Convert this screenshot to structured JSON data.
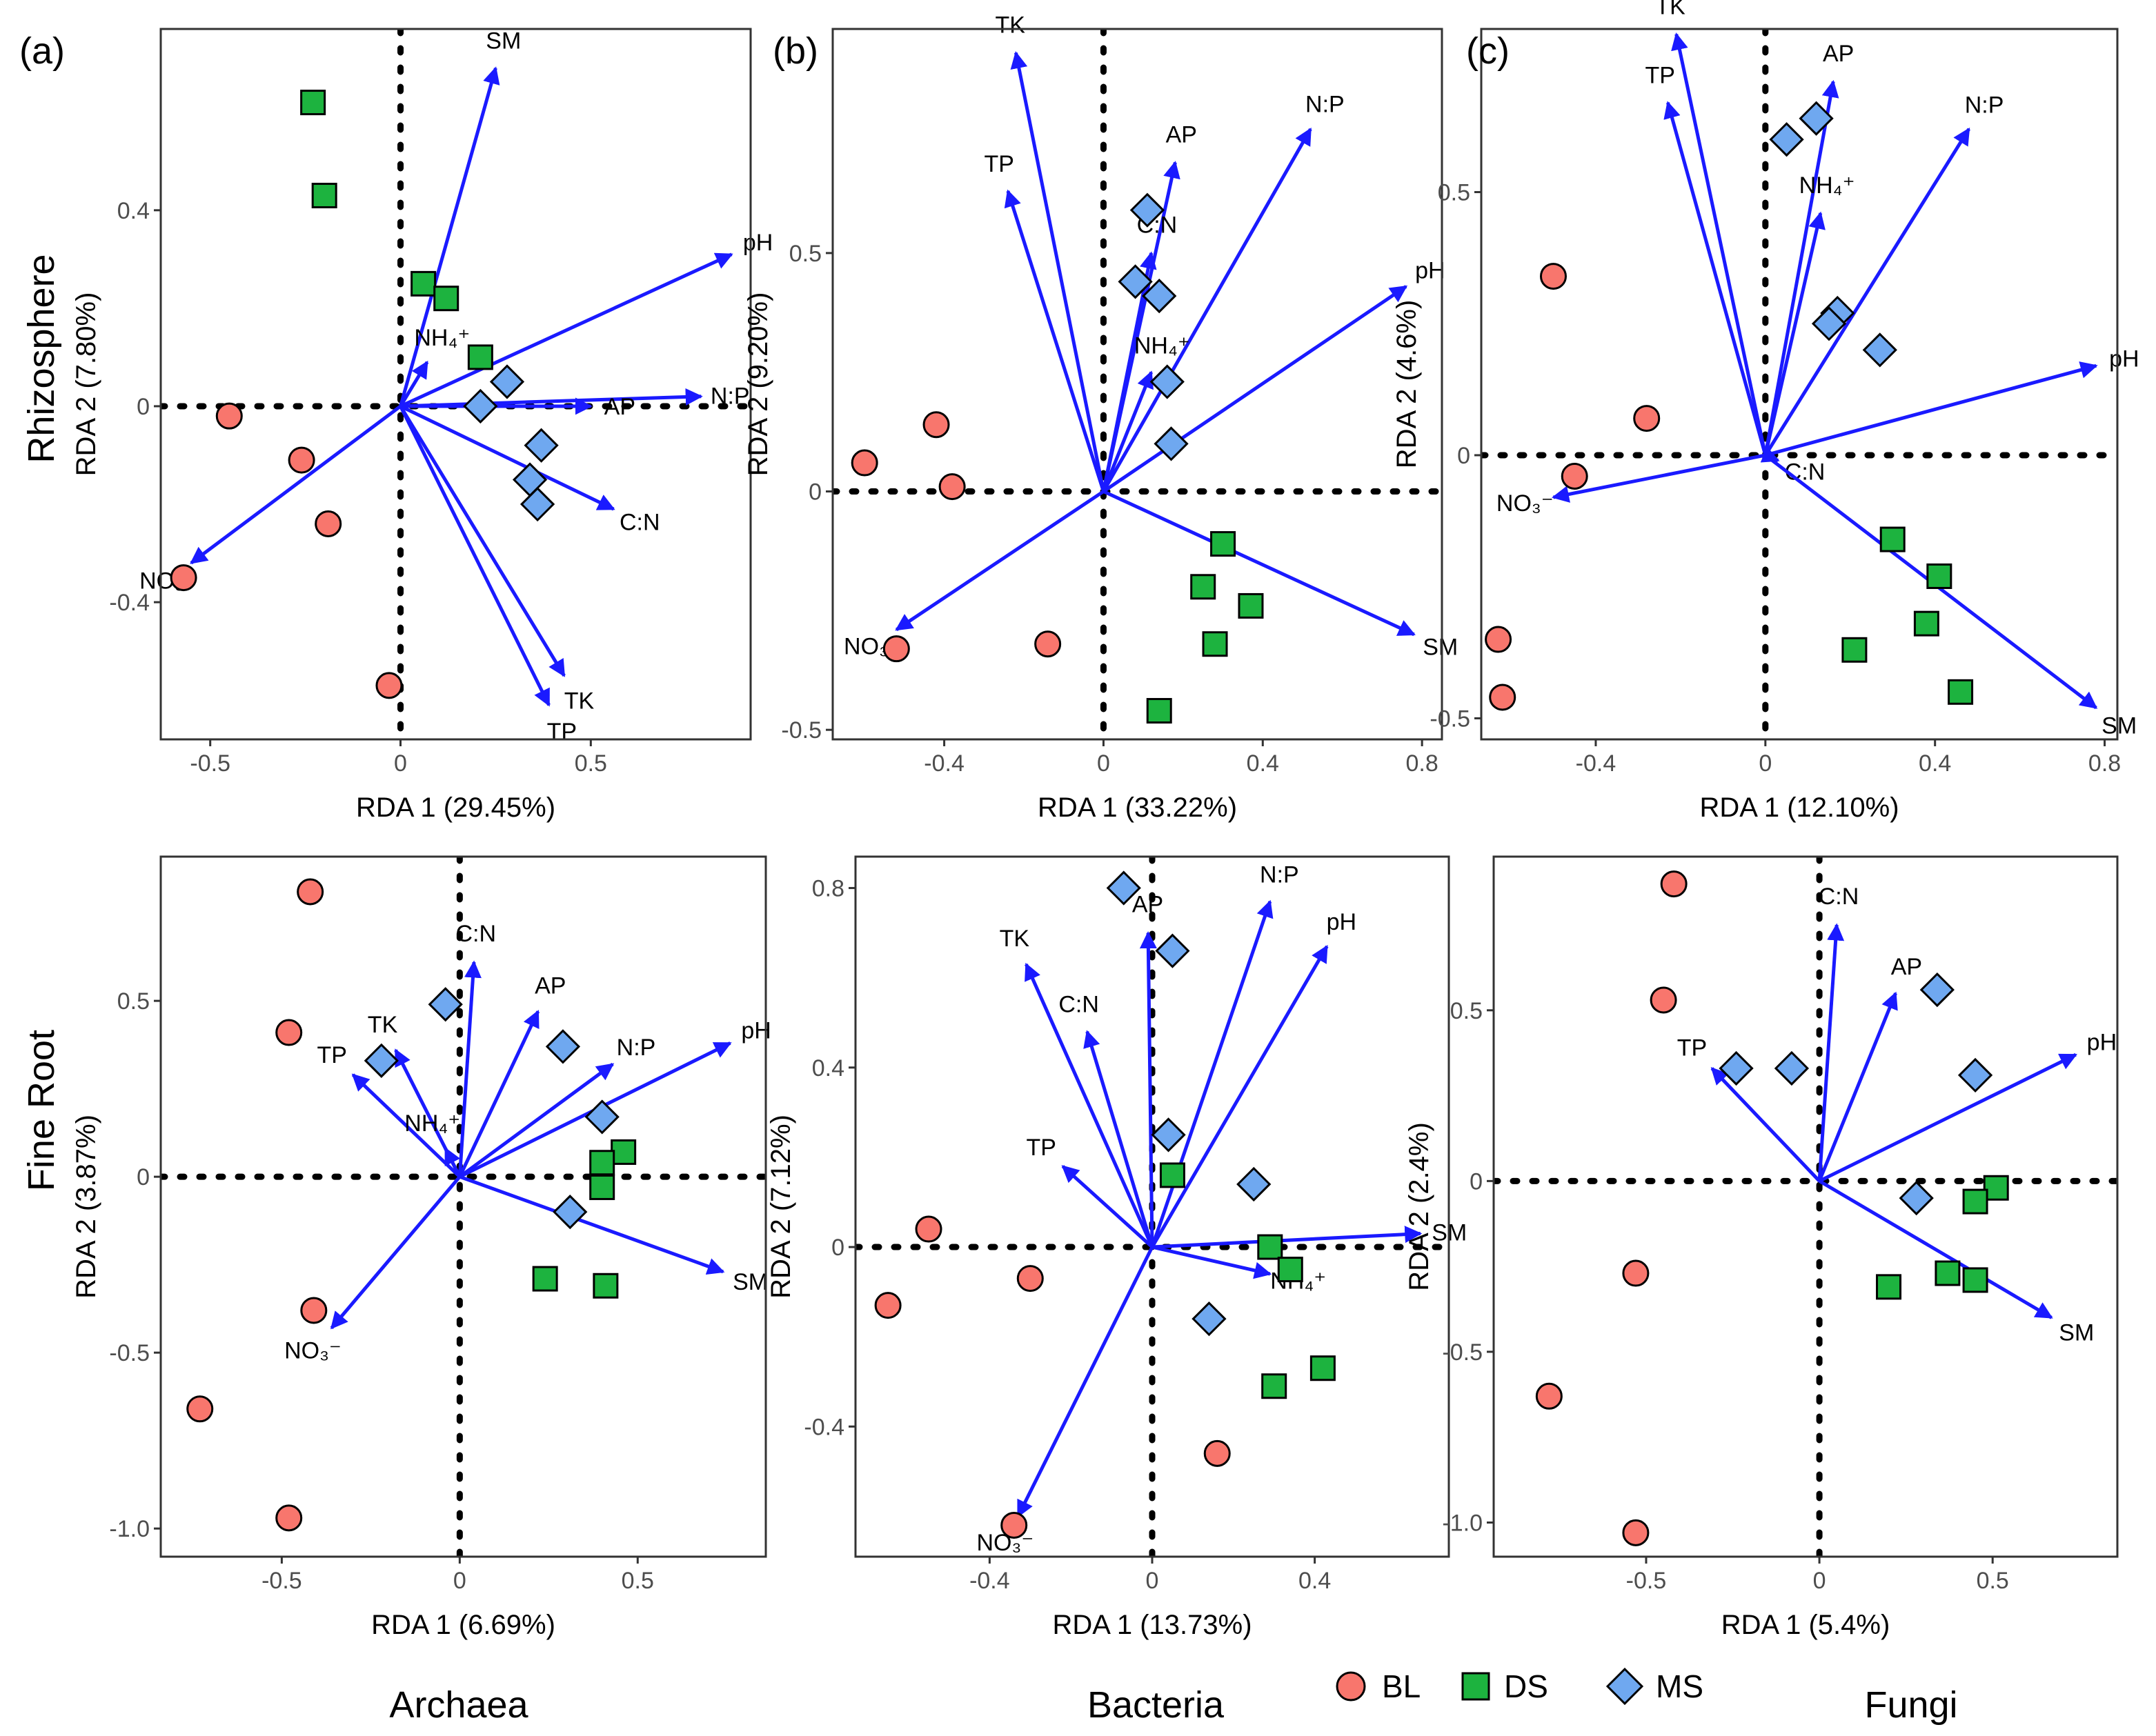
{
  "colors": {
    "BL": "#f8766d",
    "DS": "#1db33f",
    "MS": "#6fa8f0",
    "arrow": "#1a1aff"
  },
  "row_labels": [
    "Rhizosphere",
    "Fine Root"
  ],
  "column_labels": [
    "Archaea",
    "Bacteria",
    "Fungi"
  ],
  "legend": [
    {
      "group": "BL",
      "label": "BL",
      "shape": "circle"
    },
    {
      "group": "DS",
      "label": "DS",
      "shape": "square"
    },
    {
      "group": "MS",
      "label": "MS",
      "shape": "diamond"
    }
  ],
  "chart_data": [
    {
      "type": "scatter",
      "tag": "(a)",
      "row": "Rhizosphere",
      "column": "Archaea",
      "xlabel": "RDA 1 (29.45%)",
      "ylabel": "RDA 2 (7.80%)",
      "xlim": [
        -0.63,
        0.92
      ],
      "ylim": [
        -0.68,
        0.77
      ],
      "xticks": [
        -0.5,
        0,
        0.5
      ],
      "xtick_labels": [
        "-0.5",
        "0",
        "0.5"
      ],
      "yticks": [
        -0.4,
        0,
        0.4
      ],
      "ytick_labels": [
        "-0.4",
        "0",
        "0.4"
      ],
      "points": [
        {
          "g": "BL",
          "x": -0.45,
          "y": -0.02
        },
        {
          "g": "BL",
          "x": -0.26,
          "y": -0.11
        },
        {
          "g": "BL",
          "x": -0.19,
          "y": -0.24
        },
        {
          "g": "BL",
          "x": -0.57,
          "y": -0.35
        },
        {
          "g": "BL",
          "x": -0.03,
          "y": -0.57
        },
        {
          "g": "DS",
          "x": -0.23,
          "y": 0.62
        },
        {
          "g": "DS",
          "x": -0.2,
          "y": 0.43
        },
        {
          "g": "DS",
          "x": 0.06,
          "y": 0.25
        },
        {
          "g": "DS",
          "x": 0.12,
          "y": 0.22
        },
        {
          "g": "DS",
          "x": 0.21,
          "y": 0.1
        },
        {
          "g": "MS",
          "x": 0.28,
          "y": 0.05
        },
        {
          "g": "MS",
          "x": 0.21,
          "y": 0.0
        },
        {
          "g": "MS",
          "x": 0.37,
          "y": -0.08
        },
        {
          "g": "MS",
          "x": 0.34,
          "y": -0.15
        },
        {
          "g": "MS",
          "x": 0.36,
          "y": -0.2
        }
      ],
      "vectors": [
        {
          "label": "SM",
          "x": 0.25,
          "y": 0.69
        },
        {
          "label": "pH",
          "x": 0.87,
          "y": 0.31
        },
        {
          "label": "N:P",
          "x": 0.79,
          "y": 0.02
        },
        {
          "label": "AP",
          "x": 0.5,
          "y": 0.0
        },
        {
          "label": "C:N",
          "x": 0.56,
          "y": -0.21
        },
        {
          "label": "TK",
          "x": 0.43,
          "y": -0.55
        },
        {
          "label": "TP",
          "x": 0.39,
          "y": -0.61
        },
        {
          "label": "NH₄⁺",
          "x": 0.07,
          "y": 0.09
        },
        {
          "label": "NO₃⁻",
          "x": -0.55,
          "y": -0.32
        }
      ]
    },
    {
      "type": "scatter",
      "tag": "(b)",
      "row": "Rhizosphere",
      "column": "Bacteria",
      "xlabel": "RDA 1 (33.22%)",
      "ylabel": "RDA 2 (9.20%)",
      "xlim": [
        -0.68,
        0.85
      ],
      "ylim": [
        -0.52,
        0.97
      ],
      "xticks": [
        -0.4,
        0,
        0.4,
        0.8
      ],
      "xtick_labels": [
        "-0.4",
        "0",
        "0.4",
        "0.8"
      ],
      "yticks": [
        -0.5,
        0,
        0.5
      ],
      "ytick_labels": [
        "-0.5",
        "0",
        "0.5"
      ],
      "points": [
        {
          "g": "BL",
          "x": -0.6,
          "y": 0.06
        },
        {
          "g": "BL",
          "x": -0.42,
          "y": 0.14
        },
        {
          "g": "BL",
          "x": -0.38,
          "y": 0.01
        },
        {
          "g": "BL",
          "x": -0.52,
          "y": -0.33
        },
        {
          "g": "BL",
          "x": -0.14,
          "y": -0.32
        },
        {
          "g": "DS",
          "x": 0.3,
          "y": -0.11
        },
        {
          "g": "DS",
          "x": 0.25,
          "y": -0.2
        },
        {
          "g": "DS",
          "x": 0.37,
          "y": -0.24
        },
        {
          "g": "DS",
          "x": 0.28,
          "y": -0.32
        },
        {
          "g": "DS",
          "x": 0.14,
          "y": -0.46
        },
        {
          "g": "MS",
          "x": 0.11,
          "y": 0.59
        },
        {
          "g": "MS",
          "x": 0.08,
          "y": 0.44
        },
        {
          "g": "MS",
          "x": 0.14,
          "y": 0.41
        },
        {
          "g": "MS",
          "x": 0.16,
          "y": 0.23
        },
        {
          "g": "MS",
          "x": 0.17,
          "y": 0.1
        }
      ],
      "vectors": [
        {
          "label": "TK",
          "x": -0.22,
          "y": 0.92
        },
        {
          "label": "TP",
          "x": -0.24,
          "y": 0.63
        },
        {
          "label": "AP",
          "x": 0.18,
          "y": 0.69
        },
        {
          "label": "N:P",
          "x": 0.52,
          "y": 0.76
        },
        {
          "label": "C:N",
          "x": 0.12,
          "y": 0.5
        },
        {
          "label": "pH",
          "x": 0.76,
          "y": 0.43
        },
        {
          "label": "NH₄⁺",
          "x": 0.12,
          "y": 0.25
        },
        {
          "label": "SM",
          "x": 0.78,
          "y": -0.3
        },
        {
          "label": "NO₃⁻",
          "x": -0.52,
          "y": -0.29
        }
      ]
    },
    {
      "type": "scatter",
      "tag": "(c)",
      "row": "Rhizosphere",
      "column": "Fungi",
      "xlabel": "RDA 1 (12.10%)",
      "ylabel": "RDA 2 (4.6%)",
      "xlim": [
        -0.67,
        0.83
      ],
      "ylim": [
        -0.54,
        0.81
      ],
      "xticks": [
        -0.4,
        0,
        0.4,
        0.8
      ],
      "xtick_labels": [
        "-0.4",
        "0",
        "0.4",
        "0.8"
      ],
      "yticks": [
        -0.5,
        0,
        0.5
      ],
      "ytick_labels": [
        "-0.5",
        "0",
        "0.5"
      ],
      "points": [
        {
          "g": "BL",
          "x": -0.5,
          "y": 0.34
        },
        {
          "g": "BL",
          "x": -0.28,
          "y": 0.07
        },
        {
          "g": "BL",
          "x": -0.45,
          "y": -0.04
        },
        {
          "g": "BL",
          "x": -0.63,
          "y": -0.35
        },
        {
          "g": "BL",
          "x": -0.62,
          "y": -0.46
        },
        {
          "g": "DS",
          "x": 0.3,
          "y": -0.16
        },
        {
          "g": "DS",
          "x": 0.41,
          "y": -0.23
        },
        {
          "g": "DS",
          "x": 0.38,
          "y": -0.32
        },
        {
          "g": "DS",
          "x": 0.21,
          "y": -0.37
        },
        {
          "g": "DS",
          "x": 0.46,
          "y": -0.45
        },
        {
          "g": "MS",
          "x": 0.12,
          "y": 0.64
        },
        {
          "g": "MS",
          "x": 0.05,
          "y": 0.6
        },
        {
          "g": "MS",
          "x": 0.17,
          "y": 0.27
        },
        {
          "g": "MS",
          "x": 0.15,
          "y": 0.25
        },
        {
          "g": "MS",
          "x": 0.27,
          "y": 0.2
        }
      ],
      "vectors": [
        {
          "label": "TK",
          "x": -0.21,
          "y": 0.8
        },
        {
          "label": "TP",
          "x": -0.23,
          "y": 0.67
        },
        {
          "label": "AP",
          "x": 0.16,
          "y": 0.71
        },
        {
          "label": "N:P",
          "x": 0.48,
          "y": 0.62
        },
        {
          "label": "NH₄⁺",
          "x": 0.13,
          "y": 0.46
        },
        {
          "label": "pH",
          "x": 0.78,
          "y": 0.17
        },
        {
          "label": "C:N",
          "x": 0.03,
          "y": -0.01
        },
        {
          "label": "SM",
          "x": 0.78,
          "y": -0.48
        },
        {
          "label": "NO₃⁻",
          "x": -0.5,
          "y": -0.08
        }
      ]
    },
    {
      "type": "scatter",
      "tag": "",
      "row": "Fine Root",
      "column": "Archaea",
      "xlabel": "RDA 1 (6.69%)",
      "ylabel": "RDA 2 (3.87%)",
      "xlim": [
        -0.84,
        0.86
      ],
      "ylim": [
        -1.08,
        0.91
      ],
      "xticks": [
        -0.5,
        0,
        0.5
      ],
      "xtick_labels": [
        "-0.5",
        "0",
        "0.5"
      ],
      "yticks": [
        -1.0,
        -0.5,
        0,
        0.5
      ],
      "ytick_labels": [
        "-1.0",
        "-0.5",
        "0",
        "0.5"
      ],
      "points": [
        {
          "g": "BL",
          "x": -0.42,
          "y": 0.81
        },
        {
          "g": "BL",
          "x": -0.48,
          "y": 0.41
        },
        {
          "g": "BL",
          "x": -0.41,
          "y": -0.38
        },
        {
          "g": "BL",
          "x": -0.73,
          "y": -0.66
        },
        {
          "g": "BL",
          "x": -0.48,
          "y": -0.97
        },
        {
          "g": "DS",
          "x": 0.46,
          "y": 0.07
        },
        {
          "g": "DS",
          "x": 0.4,
          "y": 0.04
        },
        {
          "g": "DS",
          "x": 0.4,
          "y": -0.03
        },
        {
          "g": "DS",
          "x": 0.24,
          "y": -0.29
        },
        {
          "g": "DS",
          "x": 0.41,
          "y": -0.31
        },
        {
          "g": "MS",
          "x": -0.04,
          "y": 0.49
        },
        {
          "g": "MS",
          "x": -0.22,
          "y": 0.33
        },
        {
          "g": "MS",
          "x": 0.29,
          "y": 0.37
        },
        {
          "g": "MS",
          "x": 0.4,
          "y": 0.17
        },
        {
          "g": "MS",
          "x": 0.31,
          "y": -0.1
        }
      ],
      "vectors": [
        {
          "label": "C:N",
          "x": 0.04,
          "y": 0.61
        },
        {
          "label": "AP",
          "x": 0.22,
          "y": 0.47
        },
        {
          "label": "TK",
          "x": -0.18,
          "y": 0.36
        },
        {
          "label": "TP",
          "x": -0.3,
          "y": 0.29
        },
        {
          "label": "N:P",
          "x": 0.43,
          "y": 0.32
        },
        {
          "label": "pH",
          "x": 0.76,
          "y": 0.38
        },
        {
          "label": "NH₄⁺",
          "x": -0.04,
          "y": 0.08
        },
        {
          "label": "SM",
          "x": 0.74,
          "y": -0.27
        },
        {
          "label": "NO₃⁻",
          "x": -0.36,
          "y": -0.43
        }
      ]
    },
    {
      "type": "scatter",
      "tag": "",
      "row": "Fine Root",
      "column": "Bacteria",
      "xlabel": "RDA 1 (13.73%)",
      "ylabel": "RDA 2 (7.12%)",
      "xlim": [
        -0.73,
        0.73
      ],
      "ylim": [
        -0.69,
        0.87
      ],
      "xticks": [
        -0.4,
        0,
        0.4
      ],
      "xtick_labels": [
        "-0.4",
        "0",
        "0.4"
      ],
      "yticks": [
        -0.4,
        0,
        0.4,
        0.8
      ],
      "ytick_labels": [
        "-0.4",
        "0",
        "0.4",
        "0.8"
      ],
      "points": [
        {
          "g": "BL",
          "x": -0.55,
          "y": 0.04
        },
        {
          "g": "BL",
          "x": -0.65,
          "y": -0.13
        },
        {
          "g": "BL",
          "x": -0.3,
          "y": -0.07
        },
        {
          "g": "BL",
          "x": 0.16,
          "y": -0.46
        },
        {
          "g": "BL",
          "x": -0.34,
          "y": -0.62
        },
        {
          "g": "DS",
          "x": 0.05,
          "y": 0.16
        },
        {
          "g": "DS",
          "x": 0.29,
          "y": 0.0
        },
        {
          "g": "DS",
          "x": 0.34,
          "y": -0.05
        },
        {
          "g": "DS",
          "x": 0.42,
          "y": -0.27
        },
        {
          "g": "DS",
          "x": 0.3,
          "y": -0.31
        },
        {
          "g": "MS",
          "x": -0.07,
          "y": 0.8
        },
        {
          "g": "MS",
          "x": 0.05,
          "y": 0.66
        },
        {
          "g": "MS",
          "x": 0.04,
          "y": 0.25
        },
        {
          "g": "MS",
          "x": 0.25,
          "y": 0.14
        },
        {
          "g": "MS",
          "x": 0.14,
          "y": -0.16
        }
      ],
      "vectors": [
        {
          "label": "AP",
          "x": -0.01,
          "y": 0.7
        },
        {
          "label": "TK",
          "x": -0.31,
          "y": 0.63
        },
        {
          "label": "C:N",
          "x": -0.16,
          "y": 0.48
        },
        {
          "label": "N:P",
          "x": 0.29,
          "y": 0.77
        },
        {
          "label": "pH",
          "x": 0.43,
          "y": 0.67
        },
        {
          "label": "TP",
          "x": -0.22,
          "y": 0.18
        },
        {
          "label": "SM",
          "x": 0.66,
          "y": 0.03
        },
        {
          "label": "NH₄⁺",
          "x": 0.29,
          "y": -0.06
        },
        {
          "label": "NO₃⁻",
          "x": -0.33,
          "y": -0.6
        }
      ]
    },
    {
      "type": "scatter",
      "tag": "",
      "row": "Fine Root",
      "column": "Fungi",
      "xlabel": "RDA 1 (5.4%)",
      "ylabel": "RDA 2 (2.4%)",
      "xlim": [
        -0.94,
        0.86
      ],
      "ylim": [
        -1.1,
        0.95
      ],
      "xticks": [
        -0.5,
        0,
        0.5
      ],
      "xtick_labels": [
        "-0.5",
        "0",
        "0.5"
      ],
      "yticks": [
        -1.0,
        -0.5,
        0,
        0.5
      ],
      "ytick_labels": [
        "-1.0",
        "-0.5",
        "0",
        "0.5"
      ],
      "points": [
        {
          "g": "BL",
          "x": -0.42,
          "y": 0.87
        },
        {
          "g": "BL",
          "x": -0.45,
          "y": 0.53
        },
        {
          "g": "BL",
          "x": -0.53,
          "y": -0.27
        },
        {
          "g": "BL",
          "x": -0.78,
          "y": -0.63
        },
        {
          "g": "BL",
          "x": -0.53,
          "y": -1.03
        },
        {
          "g": "DS",
          "x": 0.51,
          "y": -0.02
        },
        {
          "g": "DS",
          "x": 0.45,
          "y": -0.06
        },
        {
          "g": "DS",
          "x": 0.37,
          "y": -0.27
        },
        {
          "g": "DS",
          "x": 0.45,
          "y": -0.29
        },
        {
          "g": "DS",
          "x": 0.2,
          "y": -0.31
        },
        {
          "g": "MS",
          "x": 0.34,
          "y": 0.56
        },
        {
          "g": "MS",
          "x": -0.24,
          "y": 0.33
        },
        {
          "g": "MS",
          "x": -0.08,
          "y": 0.33
        },
        {
          "g": "MS",
          "x": 0.45,
          "y": 0.31
        },
        {
          "g": "MS",
          "x": 0.28,
          "y": -0.05
        }
      ],
      "vectors": [
        {
          "label": "C:N",
          "x": 0.05,
          "y": 0.75
        },
        {
          "label": "AP",
          "x": 0.22,
          "y": 0.55
        },
        {
          "label": "TP",
          "x": -0.31,
          "y": 0.33
        },
        {
          "label": "pH",
          "x": 0.74,
          "y": 0.37
        },
        {
          "label": "SM",
          "x": 0.67,
          "y": -0.4
        }
      ]
    }
  ]
}
